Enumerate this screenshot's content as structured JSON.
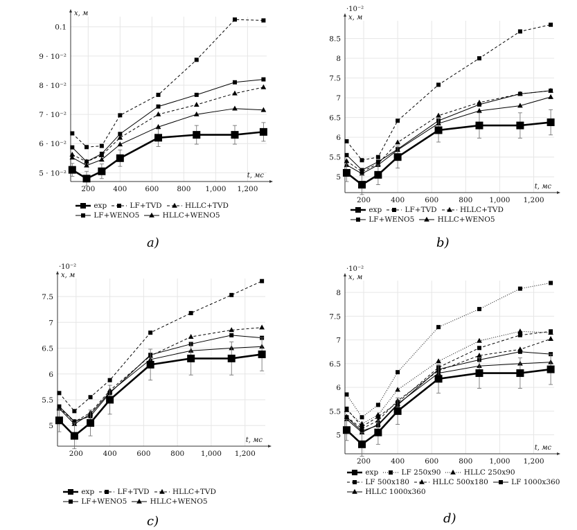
{
  "chart_data": [
    {
      "id": "a",
      "type": "line",
      "caption": "a)",
      "xlabel": "t, мс",
      "ylabel": "x, м",
      "exponent_label": "",
      "xlim": [
        90,
        1320
      ],
      "ylim": [
        4.7,
        10.35
      ],
      "xticks": [
        200,
        400,
        600,
        800,
        1000,
        1200
      ],
      "xtick_labels": [
        "200",
        "400",
        "600",
        "800",
        "1,000",
        "1,200"
      ],
      "yticks": [
        5,
        6,
        7,
        8,
        9,
        10
      ],
      "ytick_labels": [
        "5 · 10⁻²",
        "6 · 10⁻²",
        "7 · 10⁻²",
        "8 · 10⁻²",
        "9 · 10⁻²",
        "0.1"
      ],
      "grid": true,
      "units_note": "y values in 10^-2 m",
      "x": [
        100,
        190,
        285,
        400,
        640,
        880,
        1120,
        1300
      ],
      "series": [
        {
          "name": "exp",
          "style": "exp",
          "values": [
            5.1,
            4.8,
            5.05,
            5.5,
            6.2,
            6.3,
            6.3,
            6.4
          ],
          "errors": [
            0.22,
            0.25,
            0.25,
            0.28,
            0.3,
            0.32,
            0.32,
            0.32
          ]
        },
        {
          "name": "LF+TVD",
          "style": "dashed-square",
          "values": [
            6.35,
            5.88,
            5.92,
            6.97,
            7.67,
            8.87,
            10.25,
            10.22
          ]
        },
        {
          "name": "HLLC+TVD",
          "style": "dashed-triangle",
          "values": [
            5.62,
            5.38,
            5.6,
            6.2,
            7.0,
            7.33,
            7.72,
            7.93
          ]
        },
        {
          "name": "LF+WENO5",
          "style": "solid-square",
          "values": [
            5.87,
            5.38,
            5.65,
            6.33,
            7.27,
            7.67,
            8.1,
            8.2
          ]
        },
        {
          "name": "HLLC+WENO5",
          "style": "solid-triangle",
          "values": [
            5.52,
            5.25,
            5.45,
            5.97,
            6.57,
            7.0,
            7.2,
            7.15
          ]
        }
      ],
      "legend": {
        "placement": "bottom",
        "rows": [
          [
            "exp",
            "LF+TVD",
            "HLLC+TVD"
          ],
          [
            "LF+WENO5",
            "HLLC+WENO5"
          ]
        ]
      }
    },
    {
      "id": "b",
      "type": "line",
      "caption": "b)",
      "xlabel": "t, мс",
      "ylabel": "x, м",
      "exponent_label": "·10⁻²",
      "xlim": [
        90,
        1320
      ],
      "ylim": [
        4.6,
        8.95
      ],
      "xticks": [
        200,
        400,
        600,
        800,
        1000,
        1200
      ],
      "xtick_labels": [
        "200",
        "400",
        "600",
        "800",
        "1,000",
        "1,200"
      ],
      "yticks": [
        5,
        5.5,
        6,
        6.5,
        7,
        7.5,
        8,
        8.5
      ],
      "ytick_labels": [
        "5",
        "5.5",
        "6",
        "6.5",
        "7",
        "7.5",
        "8",
        "8.5"
      ],
      "grid": true,
      "x": [
        100,
        190,
        285,
        400,
        640,
        880,
        1120,
        1300
      ],
      "series": [
        {
          "name": "exp",
          "style": "exp",
          "values": [
            5.1,
            4.8,
            5.05,
            5.5,
            6.18,
            6.3,
            6.3,
            6.38
          ],
          "errors": [
            0.22,
            0.25,
            0.25,
            0.28,
            0.3,
            0.32,
            0.32,
            0.32
          ]
        },
        {
          "name": "LF+TVD",
          "style": "dashed-square",
          "values": [
            5.9,
            5.42,
            5.5,
            6.42,
            7.33,
            8.0,
            8.68,
            8.85
          ]
        },
        {
          "name": "HLLC+TVD",
          "style": "dashed-triangle",
          "values": [
            5.4,
            5.13,
            5.33,
            5.87,
            6.55,
            6.88,
            7.1,
            7.18
          ]
        },
        {
          "name": "LF+WENO5",
          "style": "solid-square",
          "values": [
            5.55,
            5.17,
            5.38,
            5.7,
            6.42,
            6.83,
            7.1,
            7.18
          ]
        },
        {
          "name": "HLLC+WENO5",
          "style": "solid-triangle",
          "values": [
            5.3,
            5.08,
            5.3,
            5.68,
            6.35,
            6.67,
            6.8,
            7.02
          ]
        }
      ],
      "legend": {
        "placement": "bottom",
        "rows": [
          [
            "exp",
            "LF+TVD",
            "HLLC+TVD"
          ],
          [
            "LF+WENO5",
            "HLLC+WENO5"
          ]
        ]
      }
    },
    {
      "id": "c",
      "type": "line",
      "caption": "c)",
      "xlabel": "t, мс",
      "ylabel": "x, м",
      "exponent_label": "·10⁻²",
      "xlim": [
        90,
        1320
      ],
      "ylim": [
        4.6,
        7.85
      ],
      "xticks": [
        200,
        400,
        600,
        800,
        1000,
        1200
      ],
      "xtick_labels": [
        "200",
        "400",
        "600",
        "800",
        "1,000",
        "1,200"
      ],
      "yticks": [
        5,
        5.5,
        6,
        6.5,
        7,
        7.5
      ],
      "ytick_labels": [
        "5",
        "5.5",
        "6",
        "6.5",
        "7",
        "7.5"
      ],
      "grid": true,
      "x": [
        100,
        190,
        285,
        400,
        640,
        880,
        1120,
        1300
      ],
      "series": [
        {
          "name": "exp",
          "style": "exp",
          "values": [
            5.1,
            4.8,
            5.05,
            5.5,
            6.18,
            6.3,
            6.3,
            6.38
          ],
          "errors": [
            0.22,
            0.25,
            0.25,
            0.28,
            0.3,
            0.32,
            0.32,
            0.32
          ]
        },
        {
          "name": "LF+TVD",
          "style": "dashed-square",
          "values": [
            5.63,
            5.28,
            5.55,
            5.88,
            6.8,
            7.18,
            7.53,
            7.8
          ]
        },
        {
          "name": "HLLC+TVD",
          "style": "dashed-triangle",
          "values": [
            5.35,
            5.07,
            5.25,
            5.68,
            6.35,
            6.72,
            6.85,
            6.9
          ]
        },
        {
          "name": "LF+WENO5",
          "style": "solid-square",
          "values": [
            5.37,
            5.08,
            5.18,
            5.63,
            6.37,
            6.58,
            6.75,
            6.7
          ]
        },
        {
          "name": "HLLC+WENO5",
          "style": "solid-triangle",
          "values": [
            5.33,
            5.03,
            5.22,
            5.65,
            6.28,
            6.45,
            6.5,
            6.53
          ]
        }
      ],
      "legend": {
        "placement": "bottom",
        "rows": [
          [
            "exp",
            "LF+TVD",
            "HLLC+TVD"
          ],
          [
            "LF+WENO5",
            "HLLC+WENO5"
          ]
        ]
      }
    },
    {
      "id": "d",
      "type": "line",
      "caption": "d)",
      "xlabel": "t, мс",
      "ylabel": "x, м",
      "exponent_label": "·10⁻²",
      "xlim": [
        90,
        1320
      ],
      "ylim": [
        4.6,
        8.25
      ],
      "xticks": [
        200,
        400,
        600,
        800,
        1000,
        1200
      ],
      "xtick_labels": [
        "200",
        "400",
        "600",
        "800",
        "1,000",
        "1,200"
      ],
      "yticks": [
        5,
        5.5,
        6,
        6.5,
        7,
        7.5,
        8
      ],
      "ytick_labels": [
        "5",
        "5.5",
        "6",
        "6.5",
        "7",
        "7.5",
        "8"
      ],
      "grid": true,
      "x": [
        100,
        190,
        285,
        400,
        640,
        880,
        1120,
        1300
      ],
      "series": [
        {
          "name": "exp",
          "style": "exp",
          "values": [
            5.1,
            4.8,
            5.05,
            5.5,
            6.18,
            6.3,
            6.3,
            6.38
          ],
          "errors": [
            0.22,
            0.25,
            0.25,
            0.28,
            0.3,
            0.32,
            0.32,
            0.32
          ]
        },
        {
          "name": "LF 250x90",
          "style": "dotted-square",
          "values": [
            5.85,
            5.37,
            5.63,
            6.32,
            7.27,
            7.65,
            8.08,
            8.2
          ]
        },
        {
          "name": "HLLC 250x90",
          "style": "dotted-triangle",
          "values": [
            5.52,
            5.23,
            5.42,
            5.95,
            6.55,
            6.98,
            7.18,
            7.15
          ]
        },
        {
          "name": "LF 500x180",
          "style": "dashed-square",
          "values": [
            5.55,
            5.17,
            5.38,
            5.68,
            6.42,
            6.83,
            7.1,
            7.18
          ]
        },
        {
          "name": "HLLC 500x180",
          "style": "dashed-triangle",
          "values": [
            5.38,
            5.13,
            5.3,
            5.72,
            6.35,
            6.67,
            6.8,
            7.02
          ]
        },
        {
          "name": "LF 1000x360",
          "style": "solid-square",
          "values": [
            5.37,
            5.08,
            5.2,
            5.63,
            6.38,
            6.58,
            6.75,
            6.7
          ]
        },
        {
          "name": "HLLC 1000x360",
          "style": "solid-triangle",
          "values": [
            5.33,
            5.05,
            5.22,
            5.65,
            6.3,
            6.45,
            6.5,
            6.53
          ]
        }
      ],
      "legend": {
        "placement": "bottom",
        "rows": [
          [
            "exp",
            "LF 250x90",
            "HLLC 250x90"
          ],
          [
            "LF 500x180",
            "HLLC 500x180",
            "LF 1000x360"
          ],
          [
            "HLLC 1000x360"
          ]
        ]
      }
    }
  ]
}
